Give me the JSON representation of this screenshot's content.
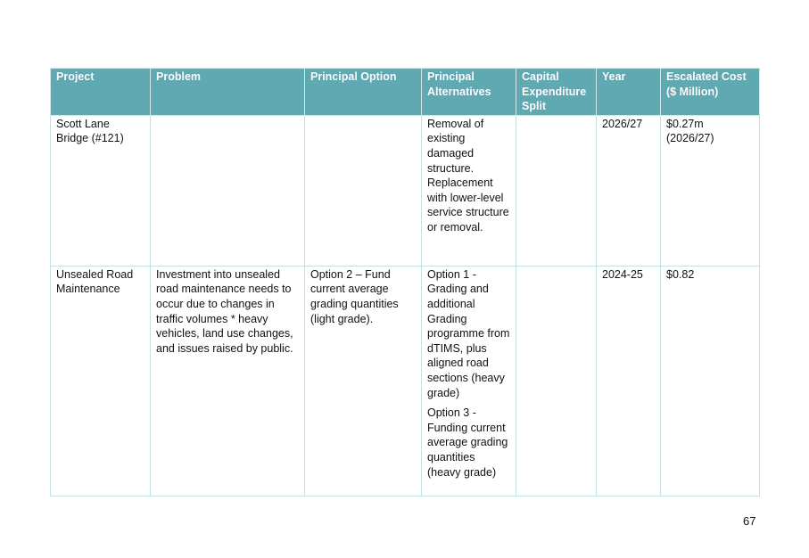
{
  "table": {
    "headers": [
      "Project",
      "Problem",
      "Principal Option",
      "Principal Alternatives",
      "Capital Expenditure Split",
      "Year",
      "Escalated Cost ($ Million)"
    ],
    "rows": [
      {
        "project": "Scott Lane Bridge (#121)",
        "problem": "",
        "principal_option": "",
        "principal_alternatives": [
          "Removal of existing damaged structure. Replacement with lower-level service structure or removal."
        ],
        "capex_split": "",
        "year": "2026/27",
        "escalated_cost": "$0.27m (2026/27)"
      },
      {
        "project": "Unsealed Road Maintenance",
        "problem": "Investment into unsealed road maintenance needs to occur due to changes in traffic volumes * heavy vehicles, land use changes, and issues raised by public.",
        "principal_option": "Option 2 – Fund current average grading quantities (light grade).",
        "principal_alternatives": [
          "Option 1 - Grading and additional Grading programme from dTIMS, plus aligned road sections (heavy grade)",
          "Option 3 - Funding current average grading quantities (heavy grade)"
        ],
        "capex_split": "",
        "year": "2024-25",
        "escalated_cost": "$0.82"
      }
    ]
  },
  "page_number": "67"
}
